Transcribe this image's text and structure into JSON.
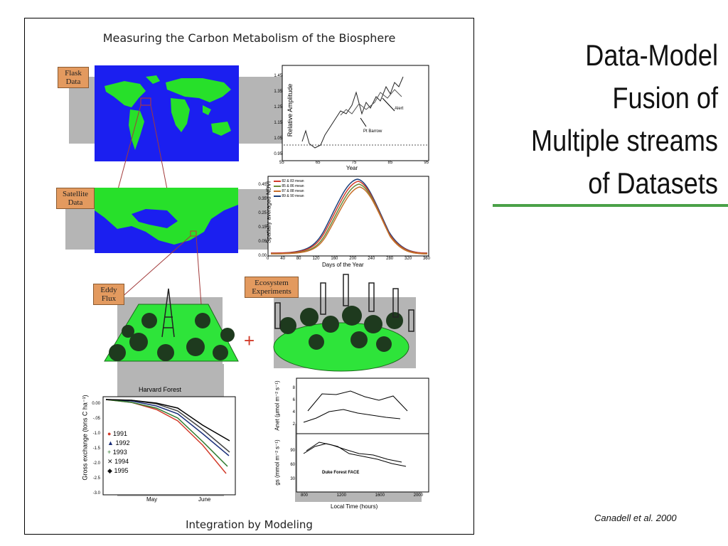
{
  "slide": {
    "heading_lines": [
      "Data-Model",
      "Fusion of",
      "Multiple streams",
      "of Datasets"
    ],
    "citation": "Canadell et al. 2000"
  },
  "figure": {
    "title": "Measuring the Carbon Metabolism of the Biosphere",
    "footer": "Integration by Modeling",
    "tags": {
      "flask": [
        "Flask",
        "Data"
      ],
      "satellite": [
        "Satellite",
        "Data"
      ],
      "eddy": [
        "Eddy",
        "Flux"
      ],
      "ecosystem": [
        "Ecosystem",
        "Experiments"
      ]
    },
    "plus": "+",
    "amplitude_chart": {
      "ylabel": "Relative Amplitude",
      "xlabel": "Year",
      "yticks": [
        "1.45",
        "1.35",
        "1.25",
        "1.15",
        "1.05",
        "0.95"
      ],
      "xticks": [
        "55",
        "65",
        "75",
        "85",
        "95"
      ],
      "labels": [
        "Alert",
        "Pt Barrow"
      ]
    },
    "ndvi_chart": {
      "ylabel": "Spatially averaged NDVI",
      "xlabel": "Days of the Year",
      "yticks": [
        "0.45",
        "0.35",
        "0.25",
        "0.15",
        "0.05",
        "0.00"
      ],
      "xticks": [
        "0",
        "40",
        "80",
        "120",
        "160",
        "200",
        "240",
        "280",
        "320",
        "360"
      ],
      "legend": [
        "82 & 83 mean",
        "85 & 86 mean",
        "87 & 88 mean",
        "89 & 90 mean"
      ],
      "colors": [
        "#d23b2a",
        "#6b8a3a",
        "#c86f2a",
        "#1b3f7a"
      ]
    },
    "harvard_chart": {
      "title": "Harvard Forest",
      "ylabel": "Gross exchange (tons C ha⁻¹)",
      "yticks": [
        "0.00",
        "-.05",
        "-1.0",
        "-1.5",
        "-2.0",
        "-2.5",
        "-3.0"
      ],
      "xticks": [
        "May",
        "June"
      ],
      "legend": [
        {
          "label": "1991",
          "marker": "●",
          "color": "#d23b2a"
        },
        {
          "label": "1992",
          "marker": "▲",
          "color": "#1b2f7a"
        },
        {
          "label": "1993",
          "marker": "+",
          "color": "#2e7a2e"
        },
        {
          "label": "1994",
          "marker": "✕",
          "color": "#111111"
        },
        {
          "label": "1995",
          "marker": "◆",
          "color": "#111111"
        }
      ]
    },
    "duke_chart": {
      "anet_label": "Anet (μmol m⁻² s⁻¹)",
      "gs_label": "gs (mmol m⁻² s⁻¹)",
      "anet_yticks": [
        "8",
        "6",
        "4",
        "2"
      ],
      "gs_yticks": [
        "90",
        "60",
        "30"
      ],
      "xticks": [
        "800",
        "1200",
        "1600",
        "2000"
      ],
      "xlabel": "Local Time (hours)",
      "inset": "Duke Forest FACE"
    }
  }
}
